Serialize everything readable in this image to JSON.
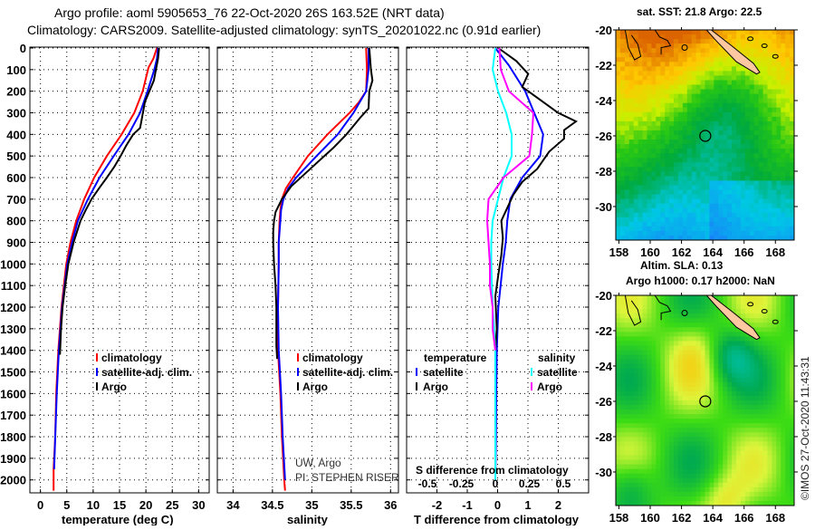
{
  "header": {
    "line1": "Argo profile: aoml 5905653_76 22-Oct-2020 26S 163.52E (NRT data)",
    "line2": "Climatology: CARS2009. Satellite-adjusted climatology: synTS_20201022.nc (0.91d earlier)"
  },
  "depth_axis": {
    "ticks": [
      "0",
      "100",
      "200",
      "300",
      "400",
      "500",
      "600",
      "700",
      "800",
      "900",
      "1000",
      "1100",
      "1200",
      "1300",
      "1400",
      "1500",
      "1600",
      "1700",
      "1800",
      "1900",
      "2000"
    ],
    "range": [
      0,
      2060
    ]
  },
  "colors": {
    "climatology": "#ff0000",
    "satellite_adj": "#0000ff",
    "argo": "#000000",
    "sal_satellite": "#00ffff",
    "sal_argo": "#ff00ff",
    "land": "#ffc8a0"
  },
  "chart_data": [
    {
      "type": "line",
      "title": "",
      "xlabel": "temperature (deg C)",
      "ylabel": "depth",
      "xlim": [
        -2,
        32
      ],
      "ylim": [
        2060,
        0
      ],
      "xticks": [
        "0",
        "5",
        "10",
        "15",
        "20",
        "25",
        "30"
      ],
      "xtick_values": [
        0,
        5,
        10,
        15,
        20,
        25,
        30
      ],
      "grid": true,
      "legend": [
        "climatology",
        "satellite-adj. clim.",
        "Argo"
      ],
      "legend_position": "bottom-right",
      "series": [
        {
          "name": "climatology",
          "color_key": "climatology",
          "depth": [
            0,
            50,
            90,
            200,
            300,
            400,
            500,
            600,
            700,
            800,
            900,
            1000,
            1200,
            1400,
            1600,
            1800,
            1950,
            2000,
            2050
          ],
          "values": [
            22.1,
            21.4,
            20.5,
            19.4,
            17.8,
            15.4,
            12.6,
            10.2,
            8.3,
            6.8,
            5.7,
            4.9,
            4.0,
            3.4,
            3.0,
            2.8,
            2.5,
            2.5,
            2.5
          ]
        },
        {
          "name": "satellite-adj. clim.",
          "color_key": "satellite_adj",
          "depth": [
            0,
            50,
            100,
            200,
            300,
            400,
            500,
            600,
            700,
            800,
            900,
            1000,
            1200,
            1400,
            1600,
            1800,
            1950
          ],
          "values": [
            22.3,
            22.1,
            21.6,
            20.3,
            18.9,
            16.7,
            13.9,
            11.2,
            9.0,
            7.1,
            6.0,
            5.1,
            4.1,
            3.5,
            3.1,
            2.8,
            2.6
          ]
        },
        {
          "name": "Argo",
          "color_key": "argo",
          "depth": [
            0,
            50,
            100,
            150,
            250,
            330,
            370,
            400,
            450,
            500,
            550,
            600,
            650,
            700,
            750,
            800,
            900,
            1000,
            1100,
            1200,
            1300,
            1420
          ],
          "values": [
            22.5,
            22.3,
            21.9,
            21.5,
            19.8,
            19.2,
            18.9,
            17.6,
            16.3,
            15.2,
            14.0,
            12.6,
            11.1,
            9.7,
            8.6,
            7.6,
            6.3,
            5.3,
            4.7,
            4.2,
            3.9,
            3.7
          ]
        }
      ]
    },
    {
      "type": "line",
      "title": "",
      "xlabel": "salinity",
      "ylabel": "depth",
      "xlim": [
        33.8,
        36.1
      ],
      "ylim": [
        2060,
        0
      ],
      "xticks": [
        "34",
        "34.5",
        "35",
        "35.5",
        "36"
      ],
      "xtick_values": [
        34,
        34.5,
        35,
        35.5,
        36
      ],
      "grid": true,
      "legend": [
        "climatology",
        "satellite-adj. clim.",
        "Argo"
      ],
      "legend_position": "bottom-right",
      "annotation": [
        "UW, Argo",
        "PI: STEPHEN RISER"
      ],
      "series": [
        {
          "name": "climatology",
          "color_key": "climatology",
          "depth": [
            0,
            100,
            200,
            250,
            300,
            400,
            500,
            600,
            650,
            700,
            750,
            800,
            900,
            1000,
            1200,
            1400,
            1600,
            1800,
            2000,
            2050
          ],
          "values": [
            35.69,
            35.7,
            35.69,
            35.6,
            35.48,
            35.2,
            34.95,
            34.76,
            34.67,
            34.62,
            34.6,
            34.59,
            34.58,
            34.58,
            34.57,
            34.57,
            34.6,
            34.62,
            34.65,
            34.66
          ]
        },
        {
          "name": "satellite-adj. clim.",
          "color_key": "satellite_adj",
          "depth": [
            0,
            100,
            200,
            300,
            400,
            500,
            600,
            650,
            700,
            750,
            800,
            900,
            1000,
            1200,
            1400,
            1600,
            1800,
            2000
          ],
          "values": [
            35.72,
            35.72,
            35.69,
            35.53,
            35.33,
            35.06,
            34.8,
            34.7,
            34.64,
            34.61,
            34.6,
            34.58,
            34.58,
            34.57,
            34.58,
            34.61,
            34.63,
            34.66
          ]
        },
        {
          "name": "Argo",
          "color_key": "argo",
          "depth": [
            0,
            100,
            150,
            200,
            280,
            320,
            400,
            460,
            520,
            580,
            640,
            700,
            760,
            800,
            850,
            900,
            1000,
            1100,
            1200,
            1300,
            1380,
            1440
          ],
          "values": [
            35.73,
            35.75,
            35.77,
            35.73,
            35.72,
            35.62,
            35.44,
            35.28,
            35.1,
            34.92,
            34.74,
            34.62,
            34.54,
            34.52,
            34.51,
            34.51,
            34.52,
            34.54,
            34.55,
            34.55,
            34.55,
            34.56
          ]
        }
      ]
    },
    {
      "type": "line",
      "title": "",
      "xlabel": "T difference from climatology",
      "xlabel2": "S difference from climatology",
      "ylabel": "depth",
      "xlim": [
        -3,
        3
      ],
      "ylim": [
        2060,
        0
      ],
      "xticks": [
        "-2",
        "-1",
        "0",
        "1",
        "2"
      ],
      "xtick_values": [
        -2,
        -1,
        0,
        1,
        2
      ],
      "xticks2": [
        "-0.5",
        "-0.25",
        "0",
        "0.25",
        "0.5"
      ],
      "xtick2_values": [
        -0.5,
        -0.25,
        0,
        0.25,
        0.5
      ],
      "grid": true,
      "legend": [
        "temperature",
        "satellite",
        "Argo",
        "salinity",
        "satellite",
        "Argo"
      ],
      "legend_position": "bottom",
      "series": [
        {
          "name": "temperature satellite",
          "color_key": "satellite_adj",
          "axis": "T",
          "depth": [
            0,
            80,
            200,
            300,
            400,
            500,
            600,
            700,
            800,
            900,
            1000,
            1200,
            1400,
            1600,
            1800,
            2000
          ],
          "values": [
            0.0,
            0.45,
            1.0,
            1.3,
            1.6,
            1.5,
            0.9,
            0.5,
            0.4,
            0.35,
            0.25,
            0.1,
            0.05,
            0.03,
            0.02,
            0.0
          ]
        },
        {
          "name": "temperature Argo",
          "color_key": "argo",
          "axis": "T",
          "depth": [
            0,
            60,
            120,
            180,
            240,
            300,
            340,
            380,
            420,
            480,
            560,
            620,
            680,
            740,
            800,
            880,
            960,
            1050,
            1150,
            1300,
            1400
          ],
          "values": [
            0.1,
            0.7,
            1.1,
            0.9,
            1.5,
            2.1,
            2.7,
            2.3,
            2.3,
            1.8,
            1.4,
            0.9,
            0.6,
            0.4,
            0.2,
            0.25,
            0.2,
            0.1,
            0.0,
            0.05,
            0.0
          ]
        },
        {
          "name": "salinity satellite",
          "color_key": "sal_satellite",
          "axis": "S",
          "depth": [
            0,
            100,
            200,
            300,
            400,
            500,
            600,
            700,
            800,
            900,
            1000,
            1200,
            1400,
            1600,
            1800,
            2000
          ],
          "values": [
            0.0,
            -0.02,
            0.02,
            0.08,
            0.12,
            0.12,
            0.06,
            0.02,
            -0.02,
            -0.03,
            -0.03,
            -0.02,
            0.0,
            0.0,
            0.0,
            0.0
          ]
        },
        {
          "name": "salinity Argo",
          "color_key": "sal_argo",
          "axis": "S",
          "depth": [
            0,
            100,
            200,
            300,
            400,
            500,
            600,
            700,
            800,
            900,
            1000,
            1100,
            1200,
            1300,
            1400
          ],
          "values": [
            0.03,
            0.04,
            0.1,
            0.28,
            0.27,
            0.25,
            0.06,
            -0.05,
            -0.06,
            -0.05,
            -0.04,
            -0.04,
            -0.02,
            -0.02,
            0.0
          ]
        }
      ]
    },
    {
      "type": "heatmap",
      "title": "sat. SST: 21.8 Argo: 22.5",
      "subtitle": "Altim. SLA: 0.13",
      "xlim": [
        157.8,
        169.2
      ],
      "ylim": [
        -31.9,
        -20
      ],
      "xticks": [
        "158",
        "160",
        "162",
        "164",
        "166",
        "168"
      ],
      "xtick_values": [
        158,
        160,
        162,
        164,
        166,
        168
      ],
      "yticks": [
        "-20",
        "-22",
        "-24",
        "-26",
        "-28",
        "-30"
      ],
      "ytick_values": [
        -20,
        -22,
        -24,
        -26,
        -28,
        -30
      ],
      "marker": {
        "lon": 163.52,
        "lat": -26
      }
    },
    {
      "type": "heatmap",
      "title": "Argo h1000: 0.17 h2000: NaN",
      "xlim": [
        157.8,
        169.2
      ],
      "ylim": [
        -31.9,
        -20
      ],
      "xticks": [
        "158",
        "160",
        "162",
        "164",
        "166",
        "168"
      ],
      "xtick_values": [
        158,
        160,
        162,
        164,
        166,
        168
      ],
      "yticks": [
        "-20",
        "-22",
        "-24",
        "-26",
        "-28",
        "-30"
      ],
      "ytick_values": [
        -20,
        -22,
        -24,
        -26,
        -28,
        -30
      ],
      "marker": {
        "lon": 163.52,
        "lat": -26
      }
    }
  ],
  "footer": {
    "copyright": "©IMOS 27-Oct-2020 11:43:31"
  }
}
